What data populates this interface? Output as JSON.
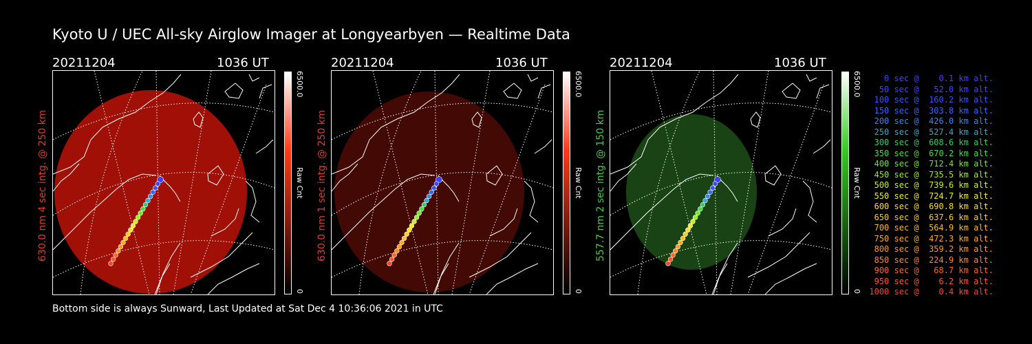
{
  "title": "Kyoto U / UEC All-sky Airglow Imager at Longyearbyen — Realtime Data",
  "footer": "Bottom side is always Sunward, Last Updated at Sat Dec  4 10:36:06 2021 in UTC",
  "panels": [
    {
      "date": "20211204",
      "time": "1036 UT",
      "side_label": "630.0 nm 4 sec intg. @ 250 km",
      "side_color": "#e23a2a",
      "colorbar_max": "6500.0",
      "colorbar_min": "0",
      "colorbar_unit": "Raw Cnt",
      "colorbar_color": "#ff3a1a",
      "glow_color": "#b21208",
      "glow_opacity": 0.9
    },
    {
      "date": "20211204",
      "time": "1036 UT",
      "side_label": "630.0 nm 1 sec intg. @ 250 km",
      "side_color": "#e23a2a",
      "colorbar_max": "6500.0",
      "colorbar_min": "0",
      "colorbar_unit": "Raw Cnt",
      "colorbar_color": "#ff3a1a",
      "glow_color": "#4a0a06",
      "glow_opacity": 0.9
    },
    {
      "date": "20211204",
      "time": "1036 UT",
      "side_label": "557.7 nm 2 sec intg. @ 150 km",
      "side_color": "#3fd03f",
      "colorbar_max": "6500.0",
      "colorbar_min": "0",
      "colorbar_unit": "Raw Cnt",
      "colorbar_color": "#33cc22",
      "glow_color": "#1c4a16",
      "glow_opacity": 0.9
    }
  ],
  "legend": [
    {
      "text": "   0 sec @    0.1 km alt.",
      "color": "#4040ff"
    },
    {
      "text": "  50 sec @   52.0 km alt.",
      "color": "#4444ff"
    },
    {
      "text": " 100 sec @  160.2 km alt.",
      "color": "#3355ff"
    },
    {
      "text": " 150 sec @  303.8 km alt.",
      "color": "#3366ff"
    },
    {
      "text": " 200 sec @  426.0 km alt.",
      "color": "#3388ee"
    },
    {
      "text": " 250 sec @  527.4 km alt.",
      "color": "#33aacc"
    },
    {
      "text": " 300 sec @  608.6 km alt.",
      "color": "#33cc66"
    },
    {
      "text": " 350 sec @  670.2 km alt.",
      "color": "#44dd33"
    },
    {
      "text": " 400 sec @  712.4 km alt.",
      "color": "#66ee22"
    },
    {
      "text": " 450 sec @  735.5 km alt.",
      "color": "#99ee22"
    },
    {
      "text": " 500 sec @  739.6 km alt.",
      "color": "#ccee22"
    },
    {
      "text": " 550 sec @  724.7 km alt.",
      "color": "#eeee22"
    },
    {
      "text": " 600 sec @  690.8 km alt.",
      "color": "#ffdd22"
    },
    {
      "text": " 650 sec @  637.6 km alt.",
      "color": "#ffcc22"
    },
    {
      "text": " 700 sec @  564.9 km alt.",
      "color": "#ffbb22"
    },
    {
      "text": " 750 sec @  472.3 km alt.",
      "color": "#ffaa22"
    },
    {
      "text": " 800 sec @  359.2 km alt.",
      "color": "#ff9922"
    },
    {
      "text": " 850 sec @  224.9 km alt.",
      "color": "#ff8822"
    },
    {
      "text": " 900 sec @   68.7 km alt.",
      "color": "#ff6622"
    },
    {
      "text": " 950 sec @    6.2 km alt.",
      "color": "#ff5522"
    },
    {
      "text": "1000 sec @    0.4 km alt.",
      "color": "#ff4422"
    }
  ]
}
